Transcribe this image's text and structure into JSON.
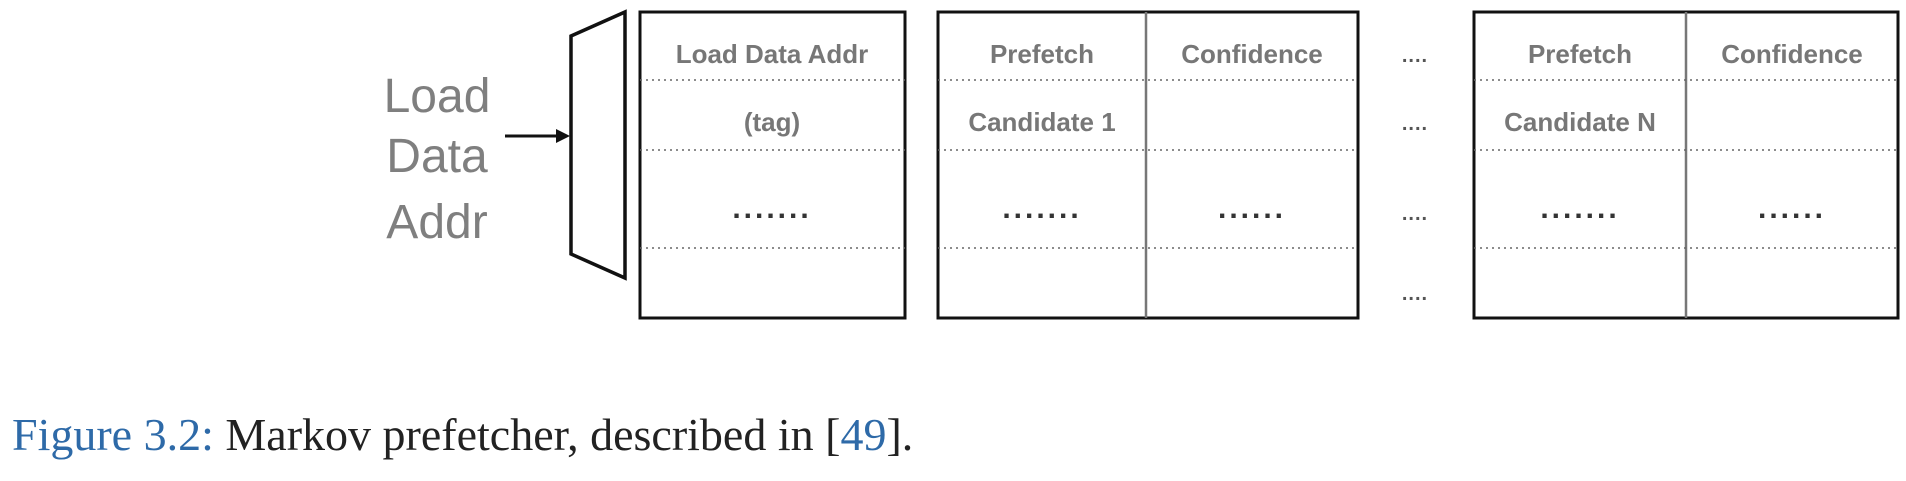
{
  "input_label": [
    "Load",
    "Data",
    "Addr"
  ],
  "tag_column": {
    "header_line1": "Load Data Addr",
    "header_line2": "(tag)",
    "row_ellipsis": "......."
  },
  "candidate_1": {
    "prefetch_line1": "Prefetch",
    "prefetch_line2": "Candidate 1",
    "confidence": "Confidence",
    "prefetch_ellipsis": ".......",
    "confidence_ellipsis": "......"
  },
  "candidate_n": {
    "prefetch_line1": "Prefetch",
    "prefetch_line2": "Candidate N",
    "confidence": "Confidence",
    "prefetch_ellipsis": ".......",
    "confidence_ellipsis": "......"
  },
  "gap_dots": "....",
  "caption": {
    "label": "Figure 3.2:",
    "text": " Markov prefetcher, described in [",
    "citation": "49",
    "end": "]."
  }
}
